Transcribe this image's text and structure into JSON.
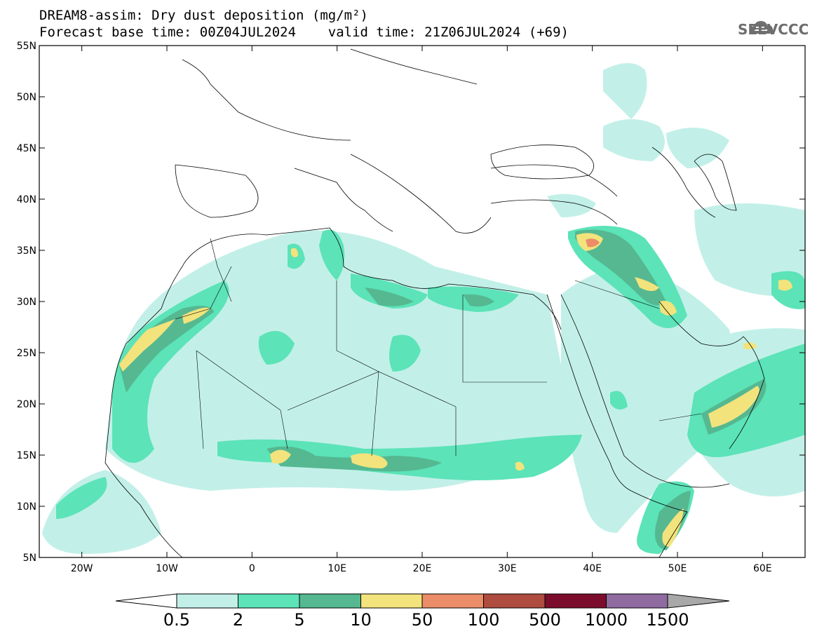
{
  "title": {
    "line1": "DREAM8-assim: Dry dust deposition (mg/m²)",
    "line2": "Forecast base time: 00Z04JUL2024    valid time: 21Z06JUL2024 (+69)"
  },
  "logo": {
    "text": "SEEVCCC",
    "icon": "cloud-icon"
  },
  "map": {
    "lon_range": [
      -25,
      65
    ],
    "lat_range": [
      5,
      55
    ],
    "lat_ticks": [
      "55N",
      "50N",
      "45N",
      "40N",
      "35N",
      "30N",
      "25N",
      "20N",
      "15N",
      "10N",
      "5N"
    ],
    "lat_values": [
      55,
      50,
      45,
      40,
      35,
      30,
      25,
      20,
      15,
      10,
      5
    ],
    "lon_ticks": [
      "20W",
      "10W",
      "0",
      "10E",
      "20E",
      "30E",
      "40E",
      "50E",
      "60E"
    ],
    "lon_values": [
      -20,
      -10,
      0,
      10,
      20,
      30,
      40,
      50,
      60
    ]
  },
  "colorbar": {
    "labels": [
      "0.5",
      "2",
      "5",
      "10",
      "50",
      "100",
      "500",
      "1000",
      "1500"
    ],
    "colors": [
      "#c2f0e8",
      "#5ce3b8",
      "#55b891",
      "#f3e37c",
      "#eb8d68",
      "#ae4c40",
      "#7c0c2c",
      "#8f6ba0"
    ],
    "under_color": "#ffffff",
    "over_color": "#a8a8a8"
  }
}
